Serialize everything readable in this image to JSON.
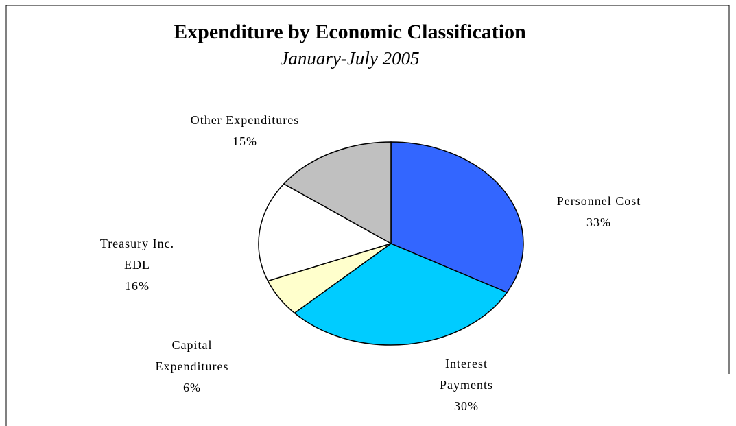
{
  "chart_data": {
    "type": "pie",
    "title": "Expenditure by Economic Classification",
    "subtitle": "January-July 2005",
    "categories": [
      "Personnel Cost",
      "Interest Payments",
      "Capital Expenditures",
      "Treasury Inc. EDL",
      "Other Expenditures"
    ],
    "values": [
      33,
      30,
      6,
      16,
      15
    ],
    "value_labels": [
      "33%",
      "30%",
      "6%",
      "16%",
      "15%"
    ],
    "colors": [
      "#3366ff",
      "#00ccff",
      "#ffffcc",
      "#ffffff",
      "#c0c0c0"
    ]
  }
}
